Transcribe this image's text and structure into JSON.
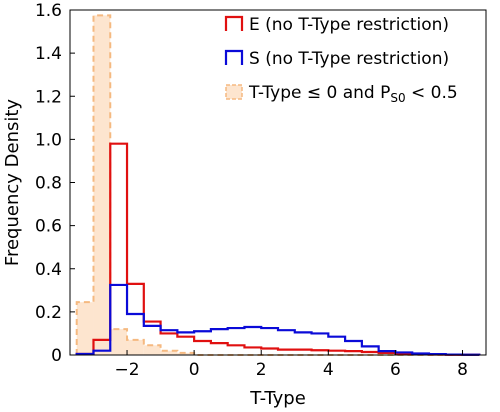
{
  "chart_data": {
    "type": "histogram",
    "xlabel": "T-Type",
    "ylabel": "Frequency Density",
    "xlim": [
      -3.7,
      8.7
    ],
    "ylim": [
      0,
      1.6
    ],
    "xticks": [
      -2,
      0,
      2,
      4,
      6,
      8
    ],
    "xtick_labels": [
      "−2",
      "0",
      "2",
      "4",
      "6",
      "8"
    ],
    "yticks": [
      0,
      0.2,
      0.4,
      0.6,
      0.8,
      1.0,
      1.2,
      1.4,
      1.6
    ],
    "ytick_labels": [
      "0",
      "0.2",
      "0.4",
      "0.6",
      "0.8",
      "1.0",
      "1.2",
      "1.4",
      "1.6"
    ],
    "bin_edges": [
      -3.5,
      -3.0,
      -2.5,
      -2.0,
      -1.5,
      -1.0,
      -0.5,
      0.0,
      0.5,
      1.0,
      1.5,
      2.0,
      2.5,
      3.0,
      3.5,
      4.0,
      4.5,
      5.0,
      5.5,
      6.0,
      6.5,
      7.0,
      7.5,
      8.0,
      8.5
    ],
    "legend_position": "upper right",
    "series": [
      {
        "name": "E (no T-Type restriction)",
        "style": "step",
        "color": "#e01010",
        "values": [
          0.005,
          0.07,
          0.98,
          0.33,
          0.155,
          0.1,
          0.085,
          0.065,
          0.055,
          0.045,
          0.035,
          0.03,
          0.025,
          0.025,
          0.022,
          0.02,
          0.018,
          0.014,
          0.01,
          0.005,
          0.003,
          0.002,
          0.001,
          0.001
        ]
      },
      {
        "name": "S (no T-Type restriction)",
        "style": "step",
        "color": "#0a0ad8",
        "values": [
          0.005,
          0.02,
          0.325,
          0.19,
          0.135,
          0.115,
          0.105,
          0.11,
          0.12,
          0.125,
          0.13,
          0.125,
          0.115,
          0.105,
          0.1,
          0.085,
          0.065,
          0.04,
          0.018,
          0.012,
          0.007,
          0.004,
          0.002,
          0.001
        ]
      },
      {
        "name_prefix": "T-Type ≤ 0 and P",
        "name_subscript": "S0",
        "name_suffix": " < 0.5",
        "style": "filled-dashed",
        "color": "#f5b980",
        "fill_color": "#fde5cf",
        "values": [
          0.245,
          1.575,
          0.12,
          0.07,
          0.045,
          0.02,
          0.01,
          0,
          0,
          0,
          0,
          0,
          0,
          0,
          0,
          0,
          0,
          0,
          0,
          0,
          0,
          0,
          0,
          0
        ]
      }
    ]
  }
}
